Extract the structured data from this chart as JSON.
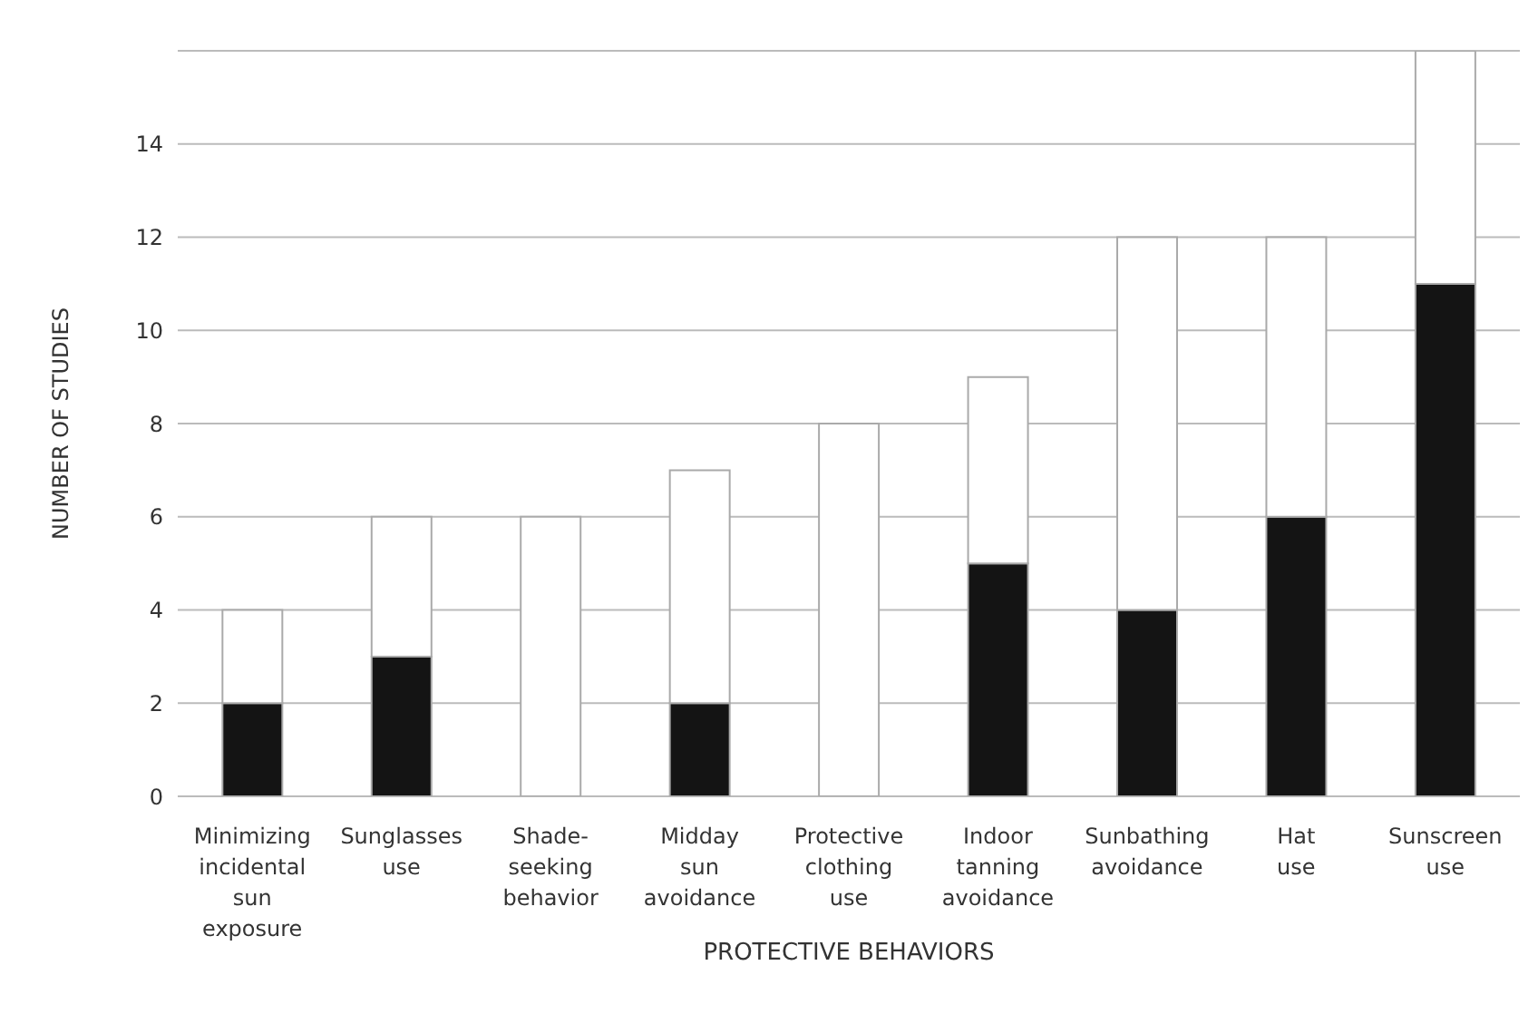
{
  "chart_data": {
    "type": "bar",
    "stacked": true,
    "xlabel": "PROTECTIVE BEHAVIORS",
    "ylabel": "NUMBER OF STUDIES",
    "categories": [
      "Minimizing incidental sun exposure",
      "Sunglasses use",
      "Shade-seeking behavior",
      "Midday sun avoidance",
      "Protective clothing use",
      "Indoor tanning avoidance",
      "Sunbathing avoidance",
      "Hat use",
      "Sunscreen use"
    ],
    "series": [
      {
        "color": "#141414",
        "values": [
          2,
          3,
          0,
          2,
          0,
          5,
          4,
          6,
          11
        ]
      },
      {
        "color": "#ffffff",
        "values": [
          2,
          3,
          6,
          5,
          8,
          4,
          8,
          6,
          5
        ]
      }
    ],
    "ylim": [
      0,
      16
    ],
    "yticks": [
      0,
      2,
      4,
      6,
      8,
      10,
      12,
      14
    ],
    "grid": "y",
    "legend": false
  }
}
